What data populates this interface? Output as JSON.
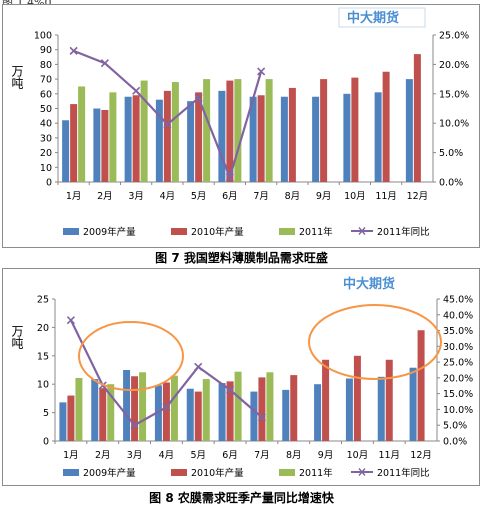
{
  "top_fragment": "图 1 4%0",
  "captions": [
    "图 7 我国塑料薄膜制品需求旺盛",
    "图 8 农膜需求旺季产量同比增速快"
  ],
  "colors": {
    "2009": "#4f81bd",
    "2010": "#c0504d",
    "2011": "#9bbb59",
    "yoy": "#8064a2",
    "highlight": "#f79646",
    "watermark": "#4a8fd4"
  },
  "chart_data": [
    {
      "type": "bar",
      "watermark": "中大期货",
      "ylabel": "万吨",
      "categories": [
        "1月",
        "2月",
        "3月",
        "4月",
        "5月",
        "6月",
        "7月",
        "8月",
        "9月",
        "10月",
        "11月",
        "12月"
      ],
      "ylim": [
        0,
        100
      ],
      "y_ticks": [
        "0",
        "10",
        "20",
        "30",
        "40",
        "50",
        "60",
        "70",
        "80",
        "90",
        "100"
      ],
      "y2lim": [
        0,
        25
      ],
      "y2_ticks": [
        "0.0%",
        "5.0%",
        "10.0%",
        "15.0%",
        "20.0%",
        "25.0%"
      ],
      "series": [
        {
          "name": "2009年产量",
          "kind": "bar",
          "values": [
            42,
            50,
            58,
            56,
            55,
            62,
            58,
            58,
            58,
            60,
            61,
            70
          ]
        },
        {
          "name": "2010年产量",
          "kind": "bar",
          "values": [
            53,
            49,
            59,
            62,
            61,
            69,
            59,
            64,
            70,
            71,
            75,
            87
          ]
        },
        {
          "name": "2011年",
          "kind": "bar",
          "values": [
            65,
            61,
            69,
            68,
            70,
            70,
            70,
            null,
            null,
            null,
            null,
            null
          ]
        },
        {
          "name": "2011年同比",
          "kind": "line",
          "axis": "right",
          "values": [
            22.3,
            20.2,
            15.5,
            9.8,
            14.3,
            0.8,
            18.8,
            null,
            null,
            null,
            null,
            null
          ]
        }
      ]
    },
    {
      "type": "bar",
      "watermark": "中大期货",
      "ylabel": "万吨",
      "categories": [
        "1月",
        "2月",
        "3月",
        "4月",
        "5月",
        "6月",
        "7月",
        "8月",
        "9月",
        "10月",
        "11月",
        "12月"
      ],
      "ylim": [
        0,
        25
      ],
      "y_ticks": [
        "0",
        "5",
        "10",
        "15",
        "20",
        "25"
      ],
      "y2lim": [
        0,
        45
      ],
      "y2_ticks": [
        "0.0%",
        "5.0%",
        "10.0%",
        "15.0%",
        "20.0%",
        "25.0%",
        "30.0%",
        "35.0%",
        "40.0%",
        "45.0%"
      ],
      "series": [
        {
          "name": "2009年产量",
          "kind": "bar",
          "values": [
            6.8,
            10.9,
            12.5,
            9.8,
            9.2,
            10.2,
            8.7,
            9.0,
            10.0,
            11.0,
            11.3,
            12.9
          ]
        },
        {
          "name": "2010年产量",
          "kind": "bar",
          "values": [
            8.0,
            9.3,
            11.4,
            10.3,
            8.7,
            10.5,
            11.2,
            11.6,
            14.3,
            15.0,
            14.3,
            19.5
          ]
        },
        {
          "name": "2011年",
          "kind": "bar",
          "values": [
            11.1,
            10.0,
            12.1,
            11.5,
            10.9,
            12.2,
            12.1,
            null,
            null,
            null,
            null,
            null
          ]
        },
        {
          "name": "2011年同比",
          "kind": "line",
          "axis": "right",
          "values": [
            38.3,
            17.6,
            5.0,
            10.7,
            23.5,
            16.2,
            7.5,
            null,
            null,
            null,
            null,
            null
          ]
        }
      ]
    }
  ]
}
